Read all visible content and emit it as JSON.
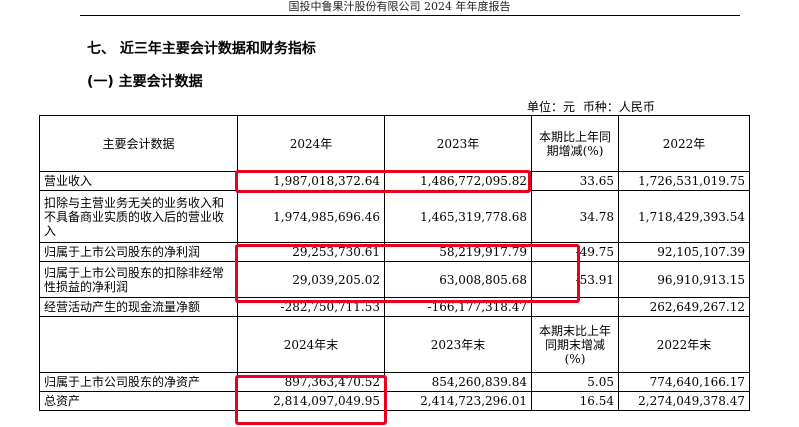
{
  "header": {
    "text": "国投中鲁果汁股份有限公司 2024 年年度报告"
  },
  "section_title": "七、 近三年主要会计数据和财务指标",
  "sub_title": "(一) 主要会计数据",
  "unit": {
    "unit_label": "单位：元",
    "currency_label": "币种：人民币"
  },
  "table1": {
    "headers": [
      "主要会计数据",
      "2024年",
      "2023年",
      "本期比上年同期增减(%)",
      "2022年"
    ],
    "rows": [
      {
        "label": "营业收入",
        "v2024": "1,987,018,372.64",
        "v2023": "1,486,772,095.82",
        "change": "33.65",
        "v2022": "1,726,531,019.75"
      },
      {
        "label": "扣除与主营业务无关的业务收入和不具备商业实质的收入后的营业收入",
        "v2024": "1,974,985,696.46",
        "v2023": "1,465,319,778.68",
        "change": "34.78",
        "v2022": "1,718,429,393.54"
      },
      {
        "label": "归属于上市公司股东的净利润",
        "v2024": "29,253,730.61",
        "v2023": "58,219,917.79",
        "change": "-49.75",
        "v2022": "92,105,107.39"
      },
      {
        "label": "归属于上市公司股东的扣除非经常性损益的净利润",
        "v2024": "29,039,205.02",
        "v2023": "63,008,805.68",
        "change": "-53.91",
        "v2022": "96,910,913.15"
      },
      {
        "label": "经营活动产生的现金流量净额",
        "v2024": "-282,750,711.53",
        "v2023": "-166,177,318.47",
        "change": "",
        "v2022": "262,649,267.12"
      }
    ]
  },
  "table2": {
    "headers": [
      "",
      "2024年末",
      "2023年末",
      "本期末比上年同期末增减(%)",
      "2022年末"
    ],
    "rows": [
      {
        "label": "归属于上市公司股东的净资产",
        "v2024": "897,363,470.52",
        "v2023": "854,260,839.84",
        "change": "5.05",
        "v2022": "774,640,166.17"
      },
      {
        "label": "总资产",
        "v2024": "2,814,097,049.95",
        "v2023": "2,414,723,296.01",
        "change": "16.54",
        "v2022": "2,274,049,378.47"
      }
    ]
  },
  "highlight_color": "#e8001e"
}
